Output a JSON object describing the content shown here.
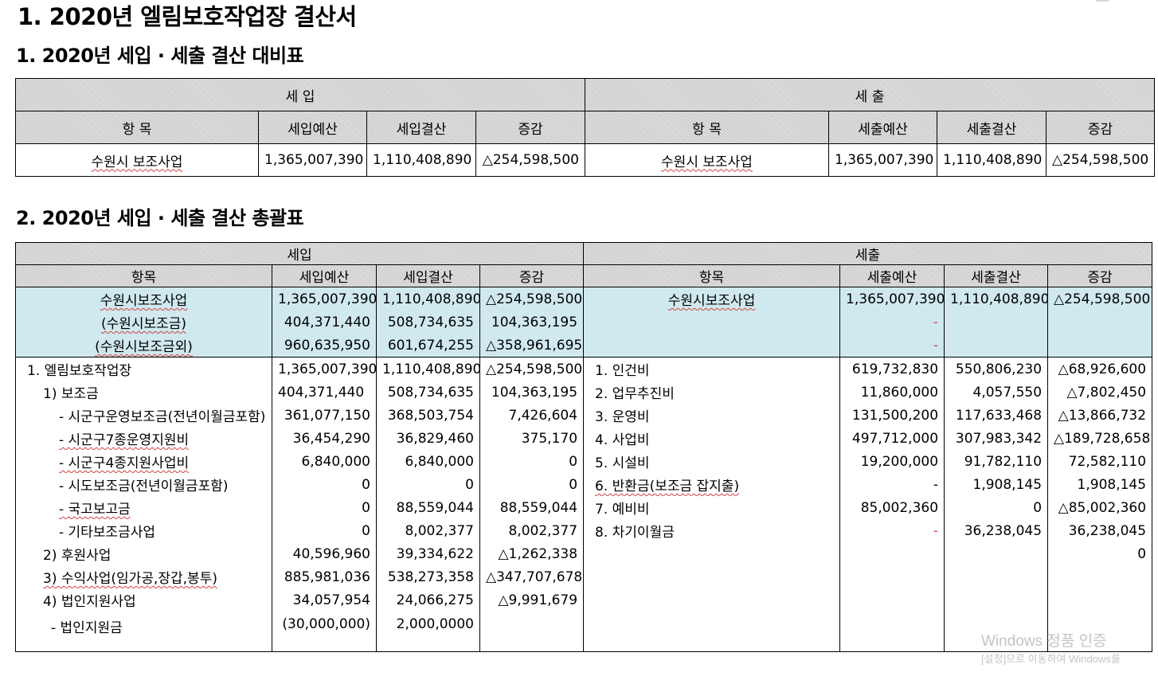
{
  "title": "1. 2020년 엘림보호작업장 결산서",
  "section1": {
    "heading": "1. 2020년 세입 · 세출 결산 대비표",
    "income_header": "세 입",
    "expense_header": "세 출",
    "income_cols": [
      "항 목",
      "세입예산",
      "세입결산",
      "증감"
    ],
    "expense_cols": [
      "항 목",
      "세출예산",
      "세출결산",
      "증감"
    ],
    "row": {
      "income": [
        "수원시 보조사업",
        "1,365,007,390",
        "1,110,408,890",
        "△254,598,500"
      ],
      "expense": [
        "수원시 보조사업",
        "1,365,007,390",
        "1,110,408,890",
        "△254,598,500"
      ]
    }
  },
  "section2": {
    "heading": "2. 2020년 세입 · 세출 결산 총괄표",
    "income_header": "세입",
    "expense_header": "세출",
    "income_cols": [
      "항목",
      "세입예산",
      "세입결산",
      "증감"
    ],
    "expense_cols": [
      "항목",
      "세출예산",
      "세출결산",
      "증감"
    ],
    "summary_rows": [
      {
        "in": [
          "수원시보조사업",
          "1,365,007,390",
          "1,110,408,890",
          "△254,598,500"
        ],
        "out": [
          "수원시보조사업",
          "1,365,007,390",
          "1,110,408,890",
          "△254,598,500"
        ]
      },
      {
        "in": [
          "(수원시보조금)",
          "404,371,440",
          "508,734,635",
          "104,363,195"
        ],
        "out": [
          "",
          "-",
          "",
          ""
        ]
      },
      {
        "in": [
          "(수원시보조금외)",
          "960,635,950",
          "601,674,255",
          "△358,961,695"
        ],
        "out": [
          "",
          "-",
          "",
          ""
        ]
      }
    ],
    "body_rows": [
      {
        "in": [
          "1. 엘림보호작업장",
          "1,365,007,390",
          "1,110,408,890",
          "△254,598,500"
        ],
        "out": [
          "1. 인건비",
          "619,732,830",
          "550,806,230",
          "△68,926,600"
        ]
      },
      {
        "in": [
          "1) 보조금",
          "404,371,440",
          "508,734,635",
          "104,363,195"
        ],
        "out": [
          "2. 업무추진비",
          "11,860,000",
          "4,057,550",
          "△7,802,450"
        ]
      },
      {
        "in": [
          "- 시군구운영보조금(전년이월금포함)",
          "361,077,150",
          "368,503,754",
          "7,426,604"
        ],
        "out": [
          "3. 운영비",
          "131,500,200",
          "117,633,468",
          "△13,866,732"
        ]
      },
      {
        "in": [
          "- 시군구7종운영지원비",
          "36,454,290",
          "36,829,460",
          "375,170"
        ],
        "out": [
          "4. 사업비",
          "497,712,000",
          "307,983,342",
          "△189,728,658"
        ]
      },
      {
        "in": [
          "- 시군구4종지원사업비",
          "6,840,000",
          "6,840,000",
          "0"
        ],
        "out": [
          "5. 시설비",
          "19,200,000",
          "91,782,110",
          "72,582,110"
        ]
      },
      {
        "in": [
          "- 시도보조금(전년이월금포함)",
          "0",
          "0",
          "0"
        ],
        "out": [
          "6. 반환금(보조금 잡지출)",
          "-",
          "1,908,145",
          "1,908,145"
        ]
      },
      {
        "in": [
          "- 국고보고금",
          "0",
          "88,559,044",
          "88,559,044"
        ],
        "out": [
          "7. 예비비",
          "85,002,360",
          "0",
          "△85,002,360"
        ]
      },
      {
        "in": [
          "- 기타보조금사업",
          "0",
          "8,002,377",
          "8,002,377"
        ],
        "out": [
          "8. 차기이월금",
          "-",
          "36,238,045",
          "36,238,045"
        ]
      },
      {
        "in": [
          "2) 후원사업",
          "40,596,960",
          "39,334,622",
          "△1,262,338"
        ],
        "out": [
          "",
          "",
          "",
          "0"
        ]
      },
      {
        "in": [
          "3) 수익사업(임가공,장갑,봉투)",
          "885,981,036",
          "538,273,358",
          "△347,707,678"
        ],
        "out": [
          "",
          "",
          "",
          ""
        ]
      },
      {
        "in": [
          "4) 법인지원사업",
          "34,057,954",
          "24,066,275",
          "△9,991,679"
        ],
        "out": [
          "",
          "",
          "",
          ""
        ]
      },
      {
        "in": [
          "- 법인지원금",
          "(30,000,000)",
          "2,000,0000",
          ""
        ],
        "out": [
          "",
          "",
          "",
          ""
        ]
      }
    ]
  },
  "watermark": {
    "line1": "Windows 정품 인증",
    "line2": "[설정]으로 이동하여 Windows를"
  }
}
